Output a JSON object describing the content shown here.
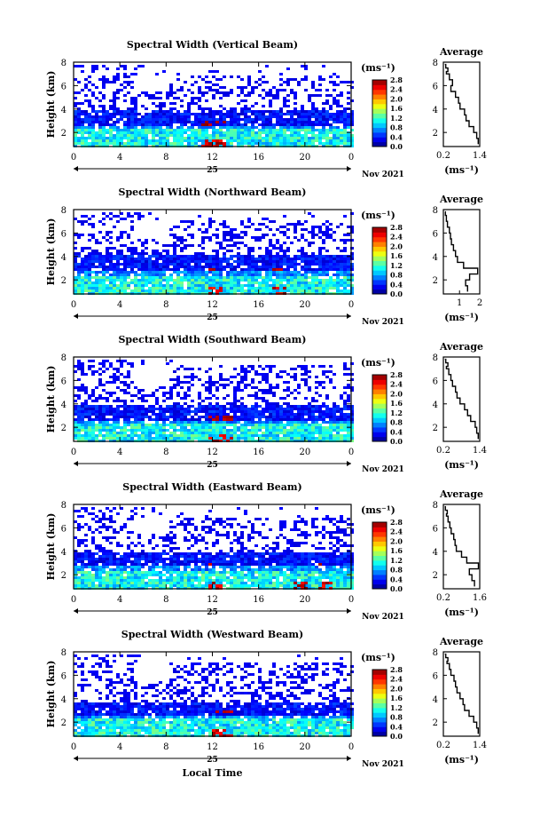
{
  "figure": {
    "date_label": "Nov 2021",
    "day_label": "25",
    "xlabel": "Local Time",
    "ylabel": "Height (km)",
    "colorbar_unit": "(ms⁻¹)",
    "profile_title": "Average",
    "profile_unit": "(ms⁻¹)"
  },
  "chart_data": [
    {
      "type": "heatmap",
      "title": "Spectral Width (Vertical Beam)",
      "xlabel": "Local Time",
      "ylabel": "Height (km)",
      "x_ticks": [
        "0",
        "4",
        "8",
        "12",
        "16",
        "20",
        "0"
      ],
      "xlim": [
        0,
        24
      ],
      "y_ticks": [
        "2",
        "4",
        "6",
        "8"
      ],
      "ylim": [
        0.8,
        8.0
      ],
      "colorbar_ticks": [
        "0.0",
        "0.4",
        "0.8",
        "1.2",
        "1.6",
        "2.0",
        "2.4",
        "2.8"
      ],
      "colorbar_range": [
        0,
        2.8
      ],
      "profile": {
        "title": "Average",
        "xlabel": "(ms⁻¹)",
        "x_ticks": [
          "0.2",
          "1.4"
        ],
        "xlim": [
          0.2,
          1.4
        ],
        "y_ticks": [
          "2",
          "4",
          "6",
          "8"
        ],
        "ylim": [
          0.8,
          8.0
        ],
        "x": [
          1.35,
          1.3,
          1.2,
          1.05,
          0.95,
          0.9,
          0.75,
          0.7,
          0.6,
          0.45,
          0.5,
          0.4,
          0.3,
          0.35,
          0.28,
          0.25
        ],
        "y": [
          1.0,
          1.5,
          2.0,
          2.5,
          3.0,
          3.5,
          4.0,
          4.5,
          5.0,
          5.5,
          6.0,
          6.5,
          7.0,
          7.2,
          7.5,
          7.8
        ]
      },
      "echo_layers": {
        "surface_top_km": 2.4,
        "mid_band_km": [
          2.6,
          4.0
        ],
        "upper_patch_km": [
          4.6,
          7.0
        ],
        "patchy_top_km": 7.8,
        "strong_spots_hours": [
          11.5,
          12.5
        ]
      }
    },
    {
      "type": "heatmap",
      "title": "Spectral Width (Northward Beam)",
      "xlabel": "Local Time",
      "ylabel": "Height (km)",
      "x_ticks": [
        "0",
        "4",
        "8",
        "12",
        "16",
        "20",
        "0"
      ],
      "xlim": [
        0,
        24
      ],
      "y_ticks": [
        "2",
        "4",
        "6",
        "8"
      ],
      "ylim": [
        0.8,
        8.0
      ],
      "colorbar_ticks": [
        "0.0",
        "0.4",
        "0.8",
        "1.2",
        "1.6",
        "2.0",
        "2.4",
        "2.8"
      ],
      "colorbar_range": [
        0,
        2.8
      ],
      "profile": {
        "title": "Average",
        "xlabel": "(ms⁻¹)",
        "x_ticks": [
          "1",
          "2"
        ],
        "xlim": [
          0.2,
          2.0
        ],
        "y_ticks": [
          "2",
          "4",
          "6",
          "8"
        ],
        "ylim": [
          0.8,
          8.0
        ],
        "x": [
          1.4,
          1.3,
          1.5,
          1.9,
          1.2,
          0.9,
          0.8,
          0.7,
          0.6,
          0.55,
          0.5,
          0.4,
          0.35,
          0.3,
          0.28
        ],
        "y": [
          1.0,
          1.5,
          2.0,
          2.5,
          3.0,
          3.5,
          4.0,
          4.5,
          5.0,
          5.5,
          6.0,
          6.5,
          7.0,
          7.5,
          7.8
        ]
      },
      "echo_layers": {
        "surface_top_km": 2.5,
        "mid_band_km": [
          2.8,
          4.2
        ],
        "upper_patch_km": [
          4.8,
          7.2
        ],
        "patchy_top_km": 7.9,
        "strong_spots_hours": [
          12.0,
          17.5
        ]
      }
    },
    {
      "type": "heatmap",
      "title": "Spectral Width (Southward Beam)",
      "xlabel": "Local Time",
      "ylabel": "Height (km)",
      "x_ticks": [
        "0",
        "4",
        "8",
        "12",
        "16",
        "20",
        "0"
      ],
      "xlim": [
        0,
        24
      ],
      "y_ticks": [
        "2",
        "4",
        "6",
        "8"
      ],
      "ylim": [
        0.8,
        8.0
      ],
      "colorbar_ticks": [
        "0.0",
        "0.4",
        "0.8",
        "1.2",
        "1.6",
        "2.0",
        "2.4",
        "2.8"
      ],
      "colorbar_range": [
        0,
        2.8
      ],
      "profile": {
        "title": "Average",
        "xlabel": "(ms⁻¹)",
        "x_ticks": [
          "0.2",
          "1.4"
        ],
        "xlim": [
          0.2,
          1.4
        ],
        "y_ticks": [
          "2",
          "4",
          "6",
          "8"
        ],
        "ylim": [
          0.8,
          8.0
        ],
        "x": [
          1.35,
          1.3,
          1.25,
          1.1,
          1.0,
          0.9,
          0.75,
          0.65,
          0.6,
          0.5,
          0.45,
          0.38,
          0.3,
          0.35,
          0.28,
          0.25
        ],
        "y": [
          1.0,
          1.5,
          2.0,
          2.5,
          3.0,
          3.5,
          4.0,
          4.5,
          5.0,
          5.5,
          6.0,
          6.5,
          7.0,
          7.2,
          7.5,
          7.8
        ]
      },
      "echo_layers": {
        "surface_top_km": 2.4,
        "mid_band_km": [
          2.6,
          4.0
        ],
        "upper_patch_km": [
          4.6,
          7.4
        ],
        "patchy_top_km": 8.0,
        "strong_spots_hours": [
          12.0,
          13.0
        ]
      }
    },
    {
      "type": "heatmap",
      "title": "Spectral Width (Eastward Beam)",
      "xlabel": "Local Time",
      "ylabel": "Height (km)",
      "x_ticks": [
        "0",
        "4",
        "8",
        "12",
        "16",
        "20",
        "0"
      ],
      "xlim": [
        0,
        24
      ],
      "y_ticks": [
        "2",
        "4",
        "6",
        "8"
      ],
      "ylim": [
        0.8,
        8.0
      ],
      "colorbar_ticks": [
        "0.0",
        "0.4",
        "0.8",
        "1.2",
        "1.6",
        "2.0",
        "2.4",
        "2.8"
      ],
      "colorbar_range": [
        0,
        2.8
      ],
      "profile": {
        "title": "Average",
        "xlabel": "(ms⁻¹)",
        "x_ticks": [
          "0.2",
          "1.6"
        ],
        "xlim": [
          0.2,
          1.6
        ],
        "y_ticks": [
          "2",
          "4",
          "6",
          "8"
        ],
        "ylim": [
          0.8,
          8.0
        ],
        "x": [
          1.4,
          1.3,
          1.2,
          1.55,
          1.1,
          0.9,
          0.7,
          0.65,
          0.6,
          0.5,
          0.45,
          0.38,
          0.32,
          0.35,
          0.28,
          0.25
        ],
        "y": [
          1.0,
          1.5,
          2.0,
          2.5,
          3.0,
          3.5,
          4.0,
          4.5,
          5.0,
          5.5,
          6.0,
          6.5,
          7.0,
          7.2,
          7.5,
          7.8
        ]
      },
      "echo_layers": {
        "surface_top_km": 2.5,
        "mid_band_km": [
          2.8,
          4.0
        ],
        "upper_patch_km": [
          4.8,
          7.0
        ],
        "patchy_top_km": 8.0,
        "strong_spots_hours": [
          12.0,
          19.5,
          21.5
        ]
      }
    },
    {
      "type": "heatmap",
      "title": "Spectral Width (Westward Beam)",
      "xlabel": "Local Time",
      "ylabel": "Height (km)",
      "x_ticks": [
        "0",
        "4",
        "8",
        "12",
        "16",
        "20",
        "0"
      ],
      "xlim": [
        0,
        24
      ],
      "y_ticks": [
        "2",
        "4",
        "6",
        "8"
      ],
      "ylim": [
        0.8,
        8.0
      ],
      "colorbar_ticks": [
        "0.0",
        "0.4",
        "0.8",
        "1.2",
        "1.6",
        "2.0",
        "2.4",
        "2.8"
      ],
      "colorbar_range": [
        0,
        2.8
      ],
      "profile": {
        "title": "Average",
        "xlabel": "(ms⁻¹)",
        "x_ticks": [
          "0.2",
          "1.4"
        ],
        "xlim": [
          0.2,
          1.4
        ],
        "y_ticks": [
          "2",
          "4",
          "6",
          "8"
        ],
        "ylim": [
          0.8,
          8.0
        ],
        "x": [
          1.35,
          1.3,
          1.2,
          1.05,
          0.9,
          0.85,
          0.75,
          0.65,
          0.6,
          0.55,
          0.45,
          0.4,
          0.32,
          0.35,
          0.28,
          0.25
        ],
        "y": [
          1.0,
          1.5,
          2.0,
          2.5,
          3.0,
          3.5,
          4.0,
          4.5,
          5.0,
          5.5,
          6.0,
          6.5,
          7.0,
          7.2,
          7.5,
          7.8
        ]
      },
      "echo_layers": {
        "surface_top_km": 2.4,
        "mid_band_km": [
          2.6,
          3.8
        ],
        "upper_patch_km": [
          4.6,
          7.2
        ],
        "patchy_top_km": 8.0,
        "strong_spots_hours": [
          12.5,
          13.0
        ]
      }
    }
  ]
}
